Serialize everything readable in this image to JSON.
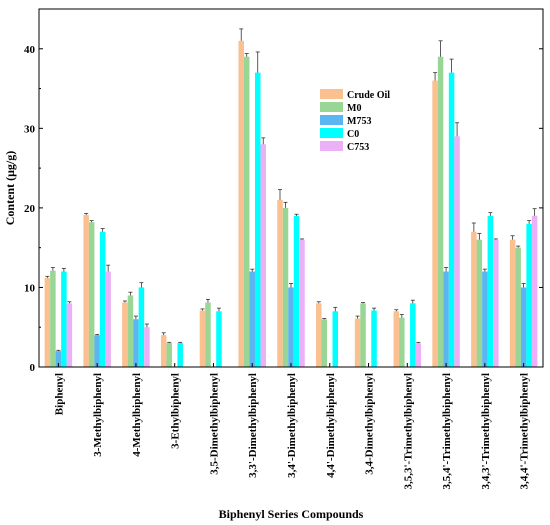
{
  "chart_data": {
    "type": "bar",
    "xlabel": "Biphenyl Series Compounds",
    "ylabel": "Content (μg/g)",
    "ylim": [
      0,
      45
    ],
    "yticks": [
      0,
      10,
      20,
      30,
      40
    ],
    "grid": false,
    "legend_position": "top-right",
    "categories": [
      "Biphenyl",
      "3-Methylbiphenyl",
      "4-Methylbiphenyl",
      "3-Ethylbiphenyl",
      "3,5-Dimethylbiphenyl",
      "3,3'-Dimethylbiphenyl",
      "3,4'-Dimethylbiphenyl",
      "4,4'-Dimethylbiphenyl",
      "3,4-Dimethylbiphenyl",
      "3,5,3'-Trimethylbiphenyl",
      "3,5,4'-Trimethylbiphenyl",
      "3,4,3'-Trimethylbiphenyl",
      "3,4,4'-Trimethylbiphenyl"
    ],
    "series": [
      {
        "name": "Crude Oil",
        "color": "#FAC090",
        "values": [
          11.2,
          19.1,
          8.1,
          4.0,
          7.1,
          41.0,
          21.0,
          8.0,
          6.1,
          7.0,
          36.0,
          17.0,
          16.0
        ],
        "errors": [
          0.2,
          0.2,
          0.2,
          0.3,
          0.2,
          1.5,
          1.3,
          0.2,
          0.3,
          0.2,
          1.0,
          1.1,
          0.5
        ]
      },
      {
        "name": "M0",
        "color": "#99D595",
        "values": [
          12.1,
          18.2,
          9.0,
          3.0,
          8.1,
          39.0,
          20.0,
          6.0,
          8.0,
          6.2,
          39.0,
          16.0,
          15.0
        ],
        "errors": [
          0.4,
          0.2,
          0.4,
          0.1,
          0.4,
          0.4,
          0.7,
          0.1,
          0.1,
          0.4,
          2.0,
          0.8,
          0.2
        ]
      },
      {
        "name": "M753",
        "color": "#5BB5F0",
        "values": [
          2.0,
          4.0,
          6.0,
          0.0,
          0.0,
          12.0,
          10.0,
          0.0,
          0.0,
          0.0,
          12.0,
          12.0,
          10.0
        ],
        "errors": [
          0.1,
          0.1,
          0.4,
          0.0,
          0.0,
          0.3,
          0.5,
          0.0,
          0.0,
          0.0,
          0.5,
          0.3,
          0.5
        ]
      },
      {
        "name": "C0",
        "color": "#00FFFF",
        "values": [
          12.0,
          17.0,
          10.0,
          3.0,
          7.0,
          37.0,
          19.0,
          7.0,
          7.1,
          8.0,
          37.0,
          19.0,
          18.0
        ],
        "errors": [
          0.4,
          0.4,
          0.6,
          0.1,
          0.4,
          2.6,
          0.2,
          0.5,
          0.3,
          0.4,
          1.7,
          0.4,
          0.4
        ]
      },
      {
        "name": "C753",
        "color": "#EBB0F5",
        "values": [
          8.0,
          12.0,
          5.0,
          0.0,
          0.0,
          28.0,
          16.0,
          0.0,
          0.0,
          3.0,
          29.0,
          16.0,
          19.0
        ],
        "errors": [
          0.2,
          0.8,
          0.4,
          0.0,
          0.0,
          0.8,
          0.1,
          0.0,
          0.0,
          0.1,
          1.7,
          0.1,
          0.9
        ]
      }
    ]
  }
}
